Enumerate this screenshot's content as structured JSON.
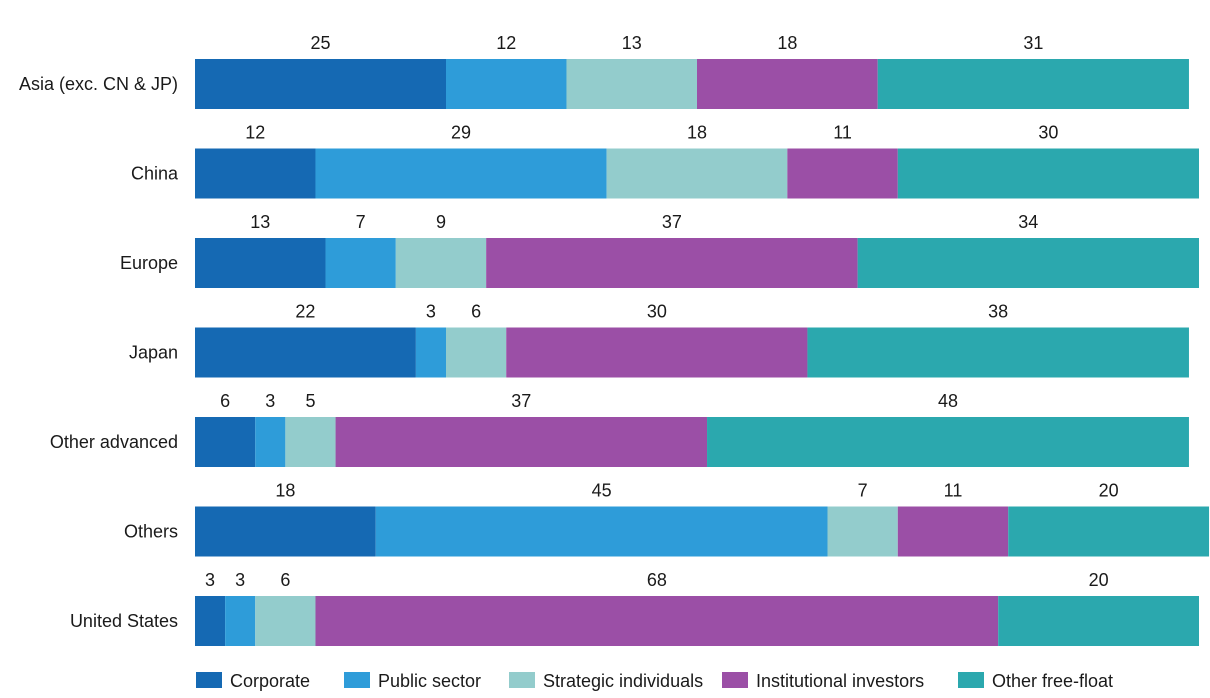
{
  "chart_data": {
    "type": "bar",
    "orientation": "horizontal",
    "stacked": true,
    "title": "",
    "xlabel": "",
    "ylabel": "",
    "xlim": [
      0,
      100
    ],
    "grid": false,
    "legend_position": "bottom",
    "categories": [
      "Asia (exc. CN & JP)",
      "China",
      "Europe",
      "Japan",
      "Other advanced",
      "Others",
      "United States"
    ],
    "series": [
      {
        "name": "Corporate",
        "color": "#1569B3",
        "values": [
          25,
          12,
          13,
          22,
          6,
          18,
          3
        ]
      },
      {
        "name": "Public sector",
        "color": "#2E9CD9",
        "values": [
          12,
          29,
          7,
          3,
          3,
          45,
          3
        ]
      },
      {
        "name": "Strategic individuals",
        "color": "#93CCCC",
        "values": [
          13,
          18,
          9,
          6,
          5,
          7,
          6
        ]
      },
      {
        "name": "Institutional investors",
        "color": "#9B4FA6",
        "values": [
          18,
          11,
          37,
          30,
          37,
          11,
          68
        ]
      },
      {
        "name": "Other free-float",
        "color": "#2BA8AE",
        "values": [
          31,
          30,
          34,
          38,
          48,
          20,
          20
        ]
      }
    ]
  }
}
